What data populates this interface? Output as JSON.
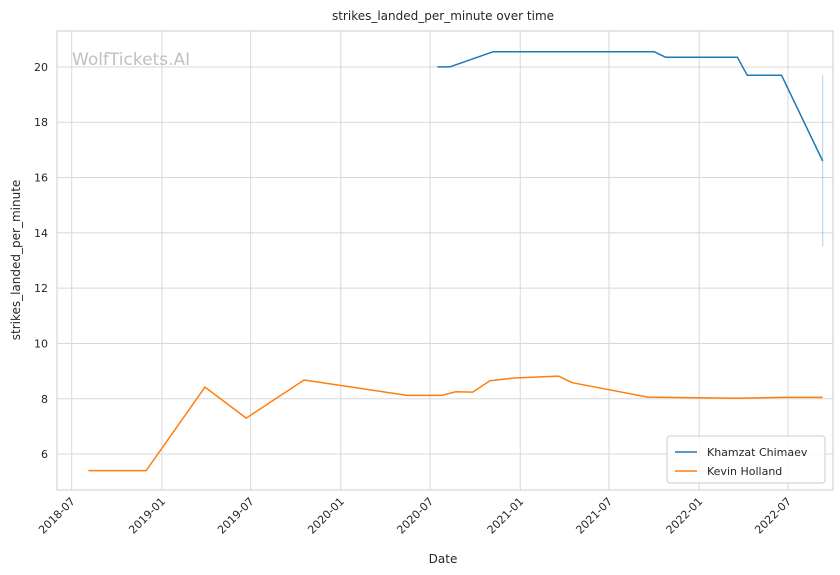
{
  "watermark": "WolfTickets.AI",
  "chart_data": {
    "type": "line",
    "title": "strikes_landed_per_minute over time",
    "xlabel": "Date",
    "ylabel": "strikes_landed_per_minute",
    "x_ticks": [
      "2018-07",
      "2019-01",
      "2019-07",
      "2020-01",
      "2020-07",
      "2021-01",
      "2021-07",
      "2022-01",
      "2022-07"
    ],
    "y_ticks": [
      6,
      8,
      10,
      12,
      14,
      16,
      18,
      20
    ],
    "xlim": [
      "2018-06-01",
      "2022-10-01"
    ],
    "ylim": [
      4.7,
      21.3
    ],
    "grid": true,
    "legend_position": "bottom-right",
    "series": [
      {
        "name": "Khamzat Chimaev",
        "color": "#1f77b4",
        "points": [
          [
            "2020-07-16",
            20.0
          ],
          [
            "2020-08-10",
            20.0
          ],
          [
            "2020-11-07",
            20.55
          ],
          [
            "2021-10-01",
            20.55
          ],
          [
            "2021-10-25",
            20.35
          ],
          [
            "2022-03-20",
            20.35
          ],
          [
            "2022-04-09",
            19.7
          ],
          [
            "2022-06-18",
            19.7
          ],
          [
            "2022-09-10",
            16.6
          ]
        ],
        "error_range": {
          "x": "2022-09-10",
          "low": 13.5,
          "high": 19.7
        }
      },
      {
        "name": "Kevin Holland",
        "color": "#ff7f0e",
        "points": [
          [
            "2018-08-04",
            5.4
          ],
          [
            "2018-11-30",
            5.4
          ],
          [
            "2019-03-30",
            8.42
          ],
          [
            "2019-06-22",
            7.3
          ],
          [
            "2019-10-18",
            8.68
          ],
          [
            "2020-05-16",
            8.12
          ],
          [
            "2020-07-25",
            8.12
          ],
          [
            "2020-08-22",
            8.25
          ],
          [
            "2020-09-26",
            8.24
          ],
          [
            "2020-10-31",
            8.65
          ],
          [
            "2020-12-19",
            8.75
          ],
          [
            "2021-03-20",
            8.82
          ],
          [
            "2021-04-17",
            8.58
          ],
          [
            "2021-09-18",
            8.06
          ],
          [
            "2022-03-19",
            8.02
          ],
          [
            "2022-06-18",
            8.05
          ],
          [
            "2022-09-10",
            8.05
          ]
        ]
      }
    ]
  }
}
